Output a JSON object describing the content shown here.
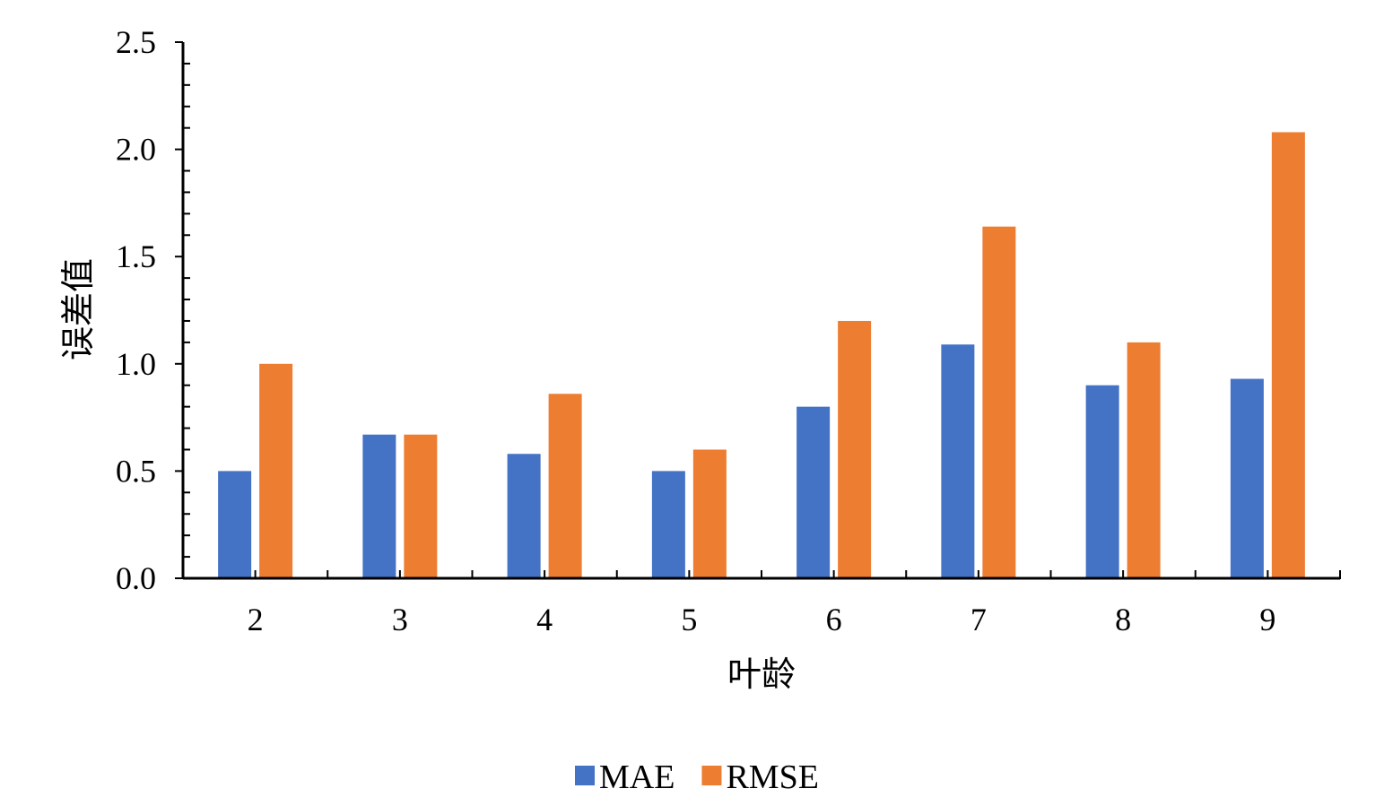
{
  "chart_data": {
    "type": "bar",
    "categories": [
      "2",
      "3",
      "4",
      "5",
      "6",
      "7",
      "8",
      "9"
    ],
    "series": [
      {
        "name": "MAE",
        "color": "#4472C4",
        "values": [
          0.5,
          0.67,
          0.58,
          0.5,
          0.8,
          1.09,
          0.9,
          0.93
        ]
      },
      {
        "name": "RMSE",
        "color": "#ED7D31",
        "values": [
          1.0,
          0.67,
          0.86,
          0.6,
          1.2,
          1.64,
          1.1,
          2.08
        ]
      }
    ],
    "xlabel": "叶龄",
    "ylabel": "误差值",
    "ylim": [
      0,
      2.5
    ],
    "yticks": [
      "0.0",
      "0.5",
      "1.0",
      "1.5",
      "2.0",
      "2.5"
    ],
    "grid": false,
    "legend_position": "bottom"
  }
}
